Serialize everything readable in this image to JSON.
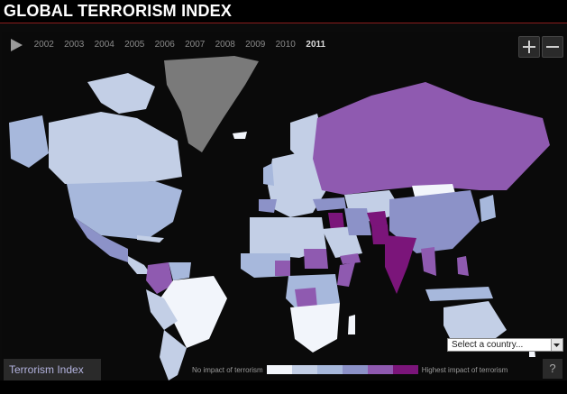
{
  "title": "GLOBAL TERRORISM INDEX",
  "timeline": {
    "years": [
      "2002",
      "2003",
      "2004",
      "2005",
      "2006",
      "2007",
      "2008",
      "2009",
      "2010",
      "2011"
    ],
    "selected": "2011",
    "play_icon": "play-icon"
  },
  "zoom": {
    "in_icon": "plus-icon",
    "out_icon": "minus-icon"
  },
  "country_select": {
    "value": "Select a country..."
  },
  "tab": {
    "label": "Terrorism Index"
  },
  "legend": {
    "low_label": "No impact of terrorism",
    "high_label": "Highest impact of terrorism",
    "colors": [
      "#f2f5fb",
      "#c3cfe6",
      "#a7b8dc",
      "#8c92c8",
      "#8f5ab0",
      "#7b157a"
    ]
  },
  "help": {
    "label": "?"
  }
}
